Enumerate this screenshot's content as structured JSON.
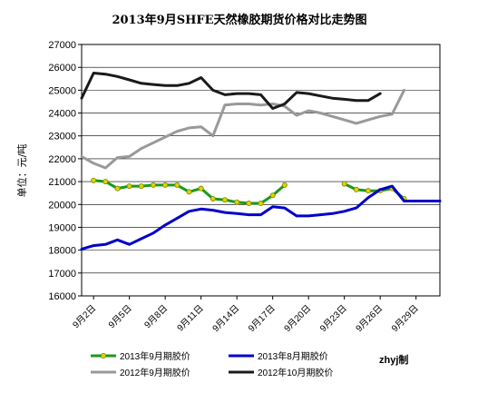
{
  "chart_data": {
    "type": "line",
    "title": "2013年9月SHFE天然橡胶期货价格对比走势图",
    "ylabel": "单位：元/吨",
    "ylim": [
      16000,
      27000
    ],
    "yticks": [
      "27000",
      "26000",
      "25000",
      "24000",
      "23000",
      "22000",
      "21000",
      "20000",
      "19000",
      "18000",
      "17000",
      "16000"
    ],
    "yticks_values": [
      27000,
      26000,
      25000,
      24000,
      23000,
      22000,
      21000,
      20000,
      19000,
      18000,
      17000,
      16000
    ],
    "xlim": [
      1,
      31
    ],
    "xticks": [
      "9月2日",
      "9月5日",
      "9月8日",
      "9月11日",
      "9月14日",
      "9月17日",
      "9月20日",
      "9月23日",
      "9月26日",
      "9月29日"
    ],
    "xticks_values": [
      2,
      5,
      8,
      11,
      14,
      17,
      20,
      23,
      26,
      29
    ],
    "grid": "horizontal",
    "legend_position": "bottom",
    "signature": "zhyj制",
    "series": [
      {
        "name": "2013年9月期胶价",
        "color": "#1a9a1a",
        "marker": true,
        "x": [
          2,
          3,
          4,
          5,
          6,
          7,
          8,
          9,
          10,
          11,
          12,
          13,
          14,
          15,
          16,
          17,
          18,
          19,
          23,
          24,
          25,
          26,
          27,
          28
        ],
        "y": [
          21050,
          21000,
          20700,
          20800,
          20800,
          20850,
          20850,
          20850,
          20550,
          20700,
          20250,
          20200,
          20100,
          20050,
          20050,
          20400,
          20850,
          null,
          20900,
          20650,
          20600,
          20600,
          20700,
          20250
        ]
      },
      {
        "name": "2013年8月期胶价",
        "color": "#0000cc",
        "marker": false,
        "x": [
          1,
          2,
          3,
          4,
          5,
          6,
          7,
          8,
          9,
          10,
          11,
          12,
          13,
          14,
          15,
          16,
          17,
          18,
          19,
          20,
          21,
          22,
          23,
          24,
          25,
          26,
          27,
          28,
          29,
          30,
          31
        ],
        "y": [
          18050,
          18200,
          18250,
          18450,
          18250,
          18500,
          18750,
          19100,
          19400,
          19700,
          19800,
          19750,
          19650,
          19600,
          19550,
          19550,
          19900,
          19850,
          19500,
          19500,
          19550,
          19600,
          19700,
          19850,
          20300,
          20650,
          20800,
          20150,
          20150,
          20150,
          20150
        ]
      },
      {
        "name": "2012年9月期胶价",
        "color": "#999999",
        "marker": false,
        "x": [
          1,
          2,
          3,
          4,
          5,
          6,
          7,
          8,
          9,
          10,
          11,
          12,
          13,
          14,
          15,
          16,
          17,
          18,
          19,
          20,
          21,
          22,
          23,
          24,
          25,
          26,
          27,
          28
        ],
        "y": [
          22100,
          21800,
          21600,
          22050,
          22100,
          22450,
          22700,
          22950,
          23200,
          23350,
          23400,
          23000,
          24350,
          24400,
          24400,
          24350,
          24400,
          24300,
          23900,
          24100,
          24000,
          23850,
          23700,
          23550,
          23700,
          23850,
          23950,
          25000
        ]
      },
      {
        "name": "2012年10月期胶价",
        "color": "#1a1a1a",
        "marker": false,
        "x": [
          1,
          2,
          3,
          4,
          5,
          6,
          7,
          8,
          9,
          10,
          11,
          12,
          13,
          14,
          15,
          16,
          17,
          18,
          19,
          20,
          21,
          22,
          23,
          24,
          25,
          26
        ],
        "y": [
          24650,
          25750,
          25700,
          25600,
          25450,
          25300,
          25250,
          25200,
          25200,
          25300,
          25550,
          25000,
          24800,
          24850,
          24850,
          24800,
          24200,
          24400,
          24900,
          24850,
          24750,
          24650,
          24600,
          24550,
          24550,
          24850
        ]
      }
    ]
  }
}
